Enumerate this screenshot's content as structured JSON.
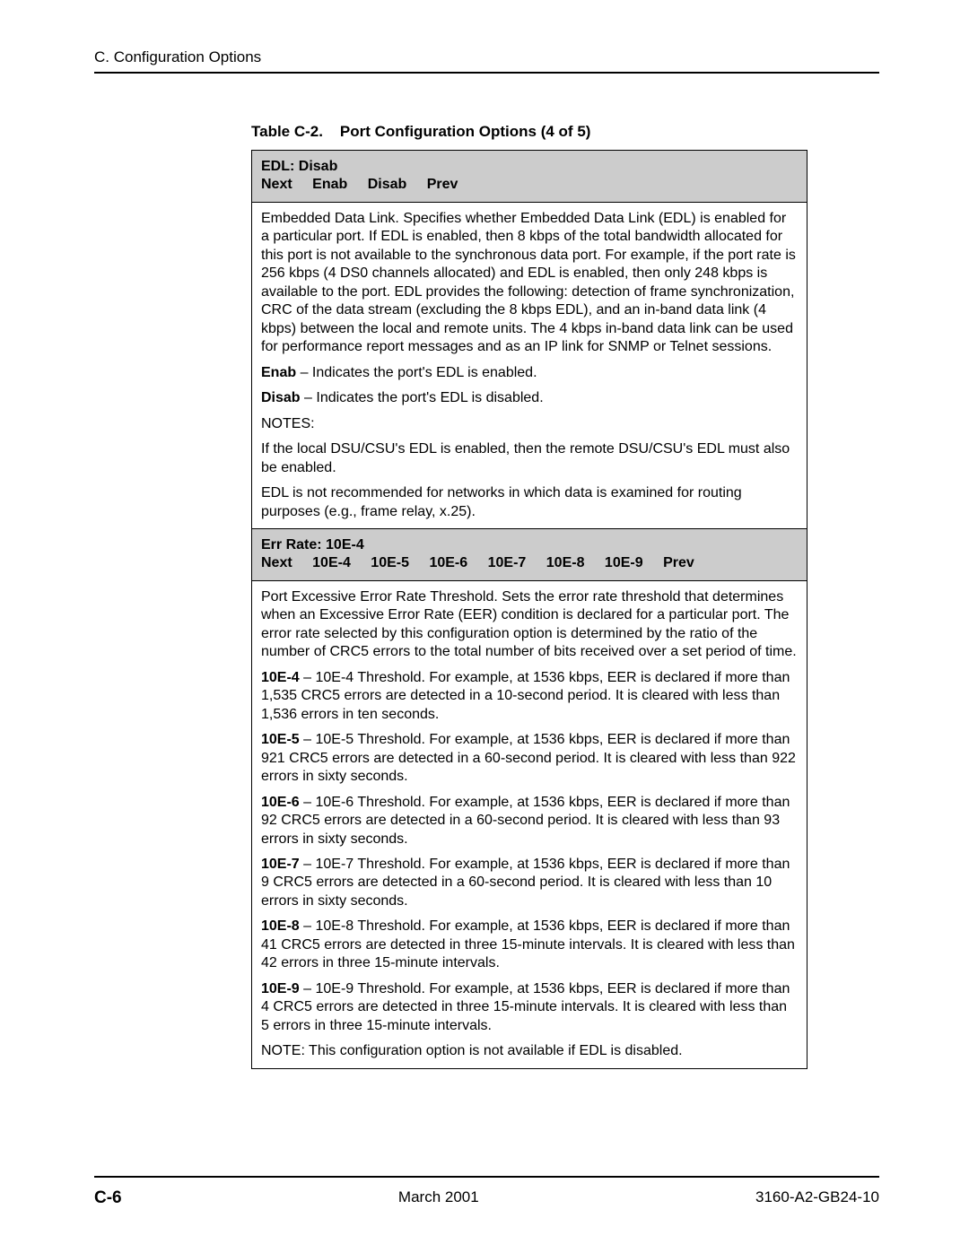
{
  "header": {
    "section_label": "C. Configuration Options"
  },
  "table": {
    "caption_label": "Table C-2.",
    "caption_title": "Port Configuration Options (4 of 5)",
    "row1_header": {
      "title": "EDL: Disab",
      "options": [
        "Next",
        "Enab",
        "Disab",
        "Prev"
      ]
    },
    "row1_body": {
      "main_para": "Embedded Data Link. Specifies whether Embedded Data Link (EDL) is enabled for a particular port. If EDL is enabled, then 8 kbps of the total bandwidth allocated for this port is not available to the synchronous data port. For example, if the port rate is 256 kbps (4 DS0 channels allocated) and EDL is enabled, then only 248 kbps is available to the port. EDL provides the following: detection of frame synchronization, CRC of the data stream (excluding the 8 kbps EDL), and an in-band data link (4 kbps) between the local and remote units. The 4 kbps in-band data link can be used for performance report messages and as an IP link for SNMP or Telnet sessions.",
      "enab_label": "Enab",
      "enab_text": " – Indicates the port's EDL is enabled.",
      "disab_label": "Disab",
      "disab_text": " – Indicates the port's EDL is disabled.",
      "notes_label": "NOTES:",
      "note1": "If the local DSU/CSU's EDL is enabled, then the remote DSU/CSU's EDL must also be enabled.",
      "note2": "EDL is not recommended for networks in which data is examined for routing purposes (e.g., frame relay, x.25)."
    },
    "row2_header": {
      "title": "Err Rate: 10E-4",
      "options": [
        "Next",
        "10E-4",
        "10E-5",
        "10E-6",
        "10E-7",
        "10E-8",
        "10E-9",
        "Prev"
      ]
    },
    "row2_body": {
      "main_para": "Port Excessive Error Rate Threshold. Sets the error rate threshold that determines when an Excessive Error Rate (EER) condition is declared for a particular port. The error rate selected by this configuration option is determined by the ratio of the number of CRC5 errors to the total number of bits received over a set period of time.",
      "e4_label": "10E-4",
      "e4_text": " – 10E-4 Threshold. For example, at 1536 kbps, EER is declared if more than 1,535 CRC5 errors are detected in a 10-second period. It is cleared with less than 1,536 errors in ten seconds.",
      "e5_label": "10E-5",
      "e5_text": " – 10E-5 Threshold. For example, at 1536 kbps, EER is declared if more than 921 CRC5 errors are detected in a 60-second period. It is cleared with less than 922 errors in sixty seconds.",
      "e6_label": "10E-6",
      "e6_text": " – 10E-6 Threshold. For example, at 1536 kbps, EER is declared if more than 92 CRC5 errors are detected in a 60-second period. It is cleared with less than 93 errors in sixty seconds.",
      "e7_label": "10E-7",
      "e7_text": " – 10E-7 Threshold. For example, at 1536 kbps, EER is declared if more than 9 CRC5 errors are detected in a 60-second period. It is cleared with less than 10 errors in sixty seconds.",
      "e8_label": "10E-8",
      "e8_text": " – 10E-8 Threshold. For example, at 1536 kbps, EER is declared if more than 41 CRC5 errors are detected in three 15-minute intervals. It is cleared with less than 42 errors in three 15-minute intervals.",
      "e9_label": "10E-9",
      "e9_text": " – 10E-9 Threshold. For example, at 1536 kbps, EER is declared if more than 4 CRC5 errors are detected in three 15-minute intervals. It is cleared with less than 5 errors in three 15-minute intervals.",
      "note": "NOTE: This configuration option is not available if EDL is disabled."
    }
  },
  "footer": {
    "page_number": "C-6",
    "date": "March 2001",
    "doc_id": "3160-A2-GB24-10"
  }
}
